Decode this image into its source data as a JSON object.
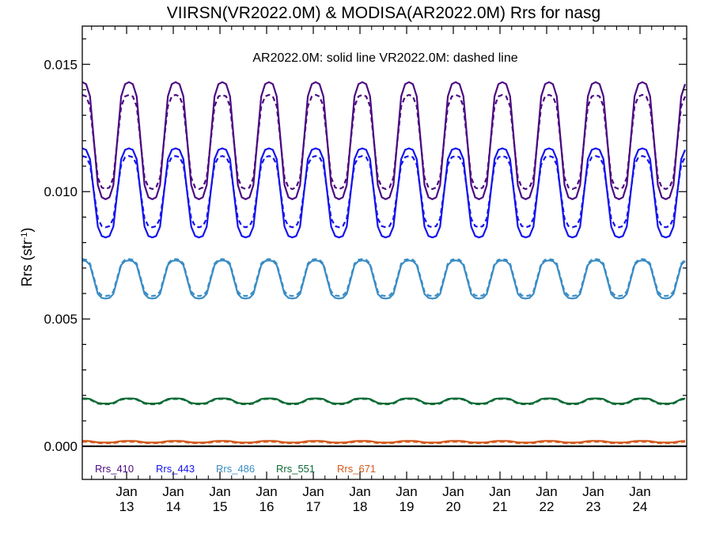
{
  "chart_data": {
    "type": "line",
    "title": "VIIRSN(VR2022.0M) & MODISA(AR2022.0M)  Rrs for nasg",
    "annotation": "AR2022.0M: solid line   VR2022.0M: dashed line",
    "ylabel": "Rrs (str",
    "ylabel_sup": "-1",
    "ylabel_close": ")",
    "xlim": [
      2012.05,
      2025.0
    ],
    "ylim": [
      -0.0013,
      0.0165
    ],
    "yticks": [
      0.0,
      0.005,
      0.01,
      0.015
    ],
    "ytick_labels": [
      "0.000",
      "0.005",
      "0.010",
      "0.015"
    ],
    "x_tick_month": "Jan",
    "x_tick_years": [
      "13",
      "14",
      "15",
      "16",
      "17",
      "18",
      "19",
      "20",
      "21",
      "22",
      "23",
      "24"
    ],
    "zero_line": true,
    "series": [
      {
        "name": "Rrs_410",
        "color": "#4b0a82",
        "solid": {
          "summer": 0.0097,
          "winter": 0.0143
        },
        "dashed": {
          "summer": 0.0101,
          "winter": 0.0138
        }
      },
      {
        "name": "Rrs_443",
        "color": "#1414ee",
        "solid": {
          "summer": 0.0082,
          "winter": 0.0117
        },
        "dashed": {
          "summer": 0.0086,
          "winter": 0.0114
        }
      },
      {
        "name": "Rrs_486",
        "color": "#3a8cc4",
        "solid": {
          "summer": 0.0058,
          "winter": 0.0073
        },
        "dashed": {
          "summer": 0.0059,
          "winter": 0.00735
        }
      },
      {
        "name": "Rrs_551",
        "color": "#0c6a35",
        "solid": {
          "summer": 0.00168,
          "winter": 0.00188
        },
        "dashed": {
          "summer": 0.00165,
          "winter": 0.00186
        }
      },
      {
        "name": "Rrs_671",
        "color": "#d4581a",
        "solid": {
          "summer": 0.00015,
          "winter": 0.00021
        },
        "dashed": {
          "summer": 0.00012,
          "winter": 0.00018
        }
      }
    ]
  }
}
